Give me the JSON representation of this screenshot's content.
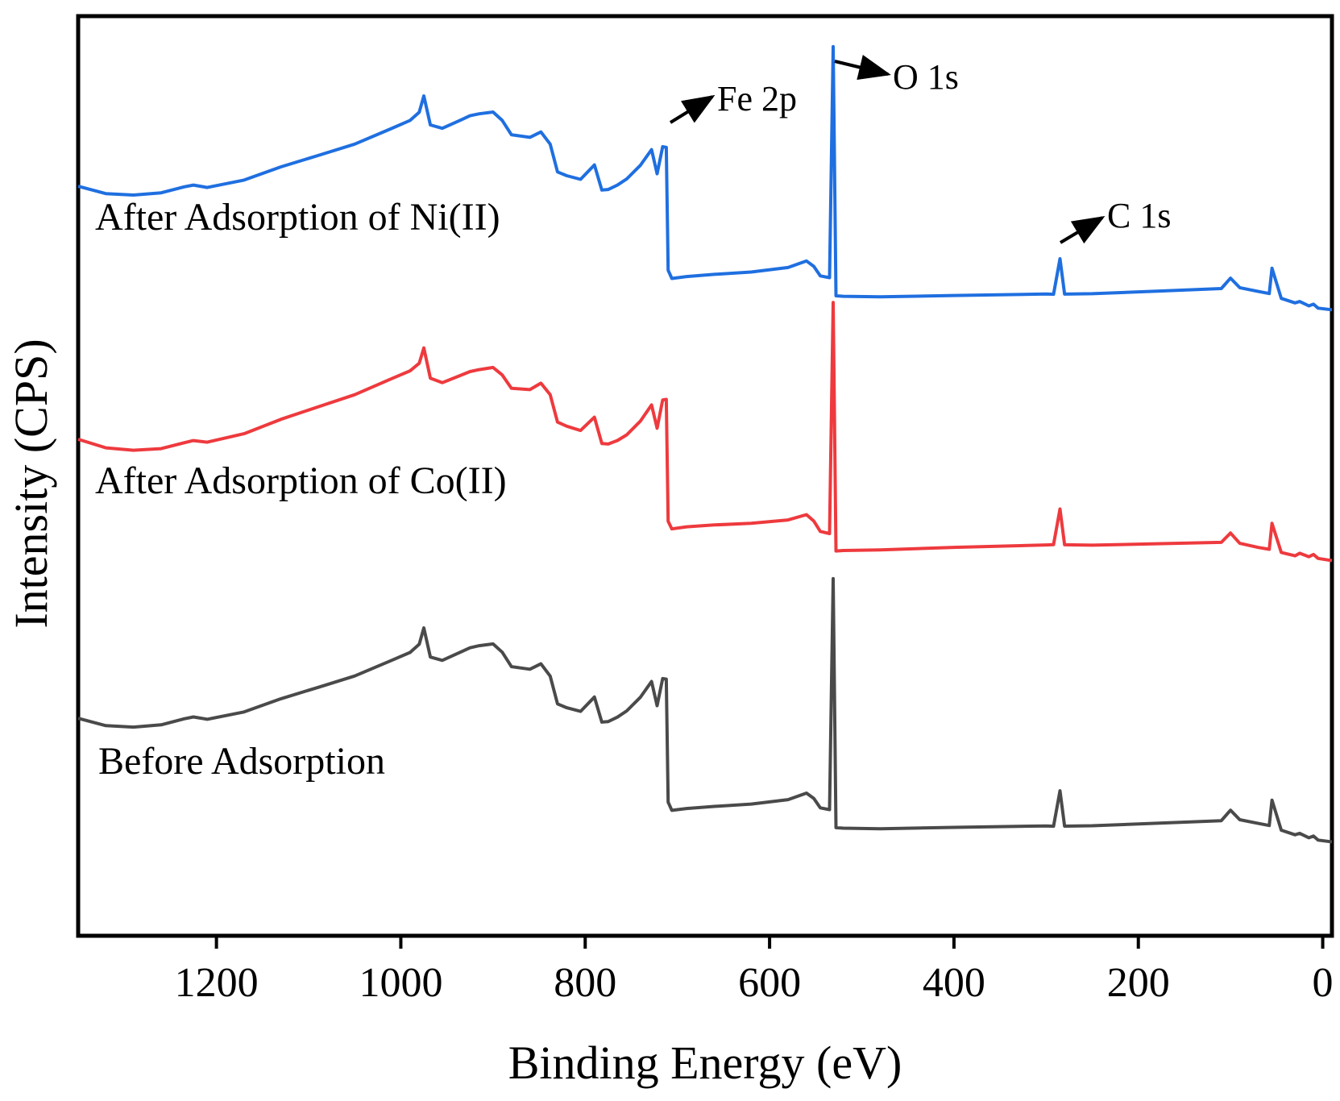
{
  "chart_data": {
    "type": "line",
    "title": "",
    "xlabel": "Binding Energy (eV)",
    "ylabel": "Intensity (CPS)",
    "xlim": [
      1350,
      -10
    ],
    "x_reversed": true,
    "y_ticks_shown": false,
    "xticks": [
      {
        "value": 1200,
        "label": "1200"
      },
      {
        "value": 1000,
        "label": "1000"
      },
      {
        "value": 800,
        "label": "800"
      },
      {
        "value": 600,
        "label": "600"
      },
      {
        "value": 400,
        "label": "400"
      },
      {
        "value": 200,
        "label": "200"
      },
      {
        "value": 0,
        "label": "0"
      }
    ],
    "series": [
      {
        "name": "After Adsorption of Ni(II)",
        "color": "#1f6fe0",
        "offset": 2,
        "x": [
          1350,
          1320,
          1290,
          1260,
          1235,
          1225,
          1210,
          1170,
          1130,
          1090,
          1050,
          1010,
          990,
          980,
          975,
          968,
          955,
          935,
          925,
          915,
          900,
          890,
          880,
          860,
          848,
          838,
          830,
          820,
          805,
          790,
          782,
          775,
          765,
          755,
          740,
          728,
          722,
          716,
          712,
          710,
          706,
          690,
          660,
          620,
          580,
          560,
          552,
          545,
          535,
          531,
          528,
          520,
          480,
          400,
          300,
          292,
          285,
          280,
          250,
          180,
          110,
          100,
          90,
          70,
          58,
          55,
          45,
          30,
          25,
          15,
          10,
          5,
          -10
        ],
        "y": [
          62,
          58,
          57,
          58,
          61,
          62,
          61,
          65,
          72,
          78,
          84,
          92,
          96,
          100,
          108,
          93,
          91,
          95,
          97,
          98,
          99,
          95,
          88,
          87,
          90,
          84,
          70,
          68,
          66,
          73,
          60,
          60,
          62,
          65,
          72,
          80,
          68,
          82,
          82,
          20,
          16,
          17,
          18,
          19,
          21,
          24,
          21,
          16,
          15,
          132,
          6,
          6,
          6,
          7,
          8,
          8,
          26,
          8,
          8,
          9,
          10,
          15,
          10,
          8,
          7,
          20,
          5,
          3,
          4,
          2,
          3,
          1,
          0
        ]
      },
      {
        "name": "After Adsorption of Co(II)",
        "color": "#ee3a3e",
        "offset": 1,
        "x": [
          1350,
          1320,
          1290,
          1260,
          1235,
          1225,
          1210,
          1170,
          1130,
          1090,
          1050,
          1010,
          990,
          980,
          975,
          968,
          955,
          935,
          925,
          915,
          900,
          890,
          880,
          860,
          848,
          838,
          830,
          820,
          805,
          790,
          782,
          775,
          765,
          755,
          740,
          728,
          722,
          716,
          712,
          710,
          706,
          690,
          660,
          620,
          580,
          560,
          552,
          545,
          535,
          531,
          528,
          520,
          480,
          400,
          300,
          292,
          285,
          280,
          250,
          180,
          110,
          100,
          90,
          70,
          58,
          55,
          45,
          30,
          25,
          15,
          10,
          5,
          -10
        ],
        "y": [
          62,
          58,
          57,
          58,
          61,
          62,
          61,
          65,
          72,
          78,
          84,
          92,
          96,
          100,
          108,
          93,
          91,
          95,
          97,
          98,
          99,
          95,
          88,
          87,
          90,
          84,
          70,
          68,
          66,
          73,
          60,
          60,
          62,
          65,
          72,
          80,
          68,
          82,
          82,
          20,
          16,
          17,
          18,
          19,
          21,
          24,
          21,
          16,
          15,
          132,
          6,
          6,
          6,
          7,
          8,
          8,
          26,
          8,
          8,
          9,
          10,
          15,
          10,
          8,
          7,
          20,
          5,
          3,
          4,
          2,
          3,
          1,
          0
        ]
      },
      {
        "name": "Before Adsorption",
        "color": "#4a4a4a",
        "offset": 0,
        "x": [
          1350,
          1320,
          1290,
          1260,
          1235,
          1225,
          1210,
          1170,
          1130,
          1090,
          1050,
          1010,
          990,
          980,
          975,
          968,
          955,
          935,
          925,
          915,
          900,
          890,
          880,
          860,
          848,
          838,
          830,
          820,
          805,
          790,
          782,
          775,
          765,
          755,
          740,
          728,
          722,
          716,
          712,
          710,
          706,
          690,
          660,
          620,
          580,
          560,
          552,
          545,
          535,
          531,
          528,
          520,
          480,
          400,
          300,
          292,
          285,
          280,
          250,
          180,
          110,
          100,
          90,
          70,
          58,
          55,
          45,
          30,
          25,
          15,
          10,
          5,
          -10
        ],
        "y": [
          62,
          58,
          57,
          58,
          61,
          62,
          61,
          65,
          72,
          78,
          84,
          92,
          96,
          100,
          108,
          93,
          91,
          95,
          97,
          98,
          99,
          95,
          88,
          87,
          90,
          84,
          70,
          68,
          66,
          73,
          60,
          60,
          62,
          65,
          72,
          80,
          68,
          82,
          82,
          20,
          16,
          17,
          18,
          19,
          21,
          24,
          21,
          16,
          15,
          132,
          6,
          6,
          6,
          7,
          8,
          8,
          26,
          8,
          8,
          9,
          10,
          15,
          10,
          8,
          7,
          20,
          5,
          3,
          4,
          2,
          3,
          1,
          0
        ]
      }
    ],
    "annotations": [
      {
        "text": "Fe 2p",
        "peak_energy": 711,
        "series": "After Adsorption of Ni(II)"
      },
      {
        "text": "O 1s",
        "peak_energy": 531,
        "series": "After Adsorption of Ni(II)"
      },
      {
        "text": "C 1s",
        "peak_energy": 285,
        "series": "After Adsorption of Ni(II)"
      }
    ]
  }
}
